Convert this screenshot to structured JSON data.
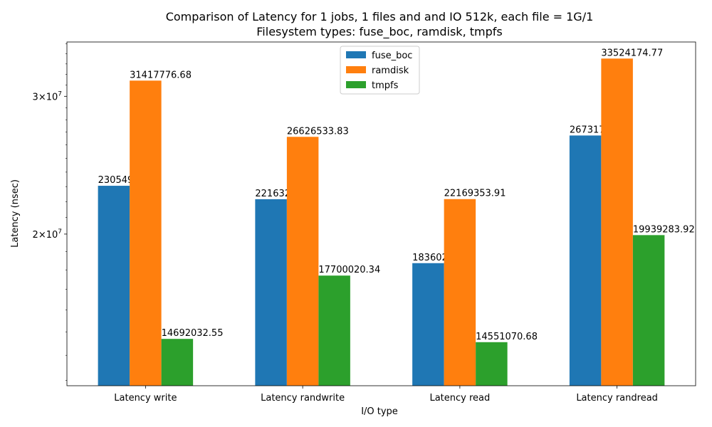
{
  "chart_data": {
    "type": "bar",
    "title_line1": "Comparison of Latency for 1 jobs, 1 files and  and IO 512k, each file = 1G/1",
    "title_line2": "Filesystem types: fuse_boc, ramdisk, tmpfs",
    "xlabel": "I/O type",
    "ylabel": "Latency (nsec)",
    "y_scale": "log",
    "ylim": [
      12800000,
      35200000
    ],
    "y_ticks": [
      {
        "value": 20000000,
        "label_mant": "2",
        "label_base": "10",
        "label_exp": "7"
      },
      {
        "value": 30000000,
        "label_mant": "3",
        "label_base": "10",
        "label_exp": "7"
      }
    ],
    "legend_position": "top-center",
    "categories": [
      "Latency write",
      "Latency randwrite",
      "Latency read",
      "Latency randread"
    ],
    "series": [
      {
        "name": "fuse_boc",
        "color": "#1f77b4",
        "values": [
          23054904.61,
          22163277.08,
          18360212.3,
          26731729.34
        ],
        "labels": [
          "23054904.61",
          "22163277.08",
          "18360212.30",
          "26731729.34"
        ]
      },
      {
        "name": "ramdisk",
        "color": "#ff7f0e",
        "values": [
          31417776.68,
          26626533.83,
          22169353.91,
          33524174.77
        ],
        "labels": [
          "31417776.68",
          "26626533.83",
          "22169353.91",
          "33524174.77"
        ]
      },
      {
        "name": "tmpfs",
        "color": "#2ca02c",
        "values": [
          14692032.55,
          17700020.34,
          14551070.68,
          19939283.92
        ],
        "labels": [
          "14692032.55",
          "17700020.34",
          "14551070.68",
          "19939283.92"
        ]
      }
    ]
  }
}
